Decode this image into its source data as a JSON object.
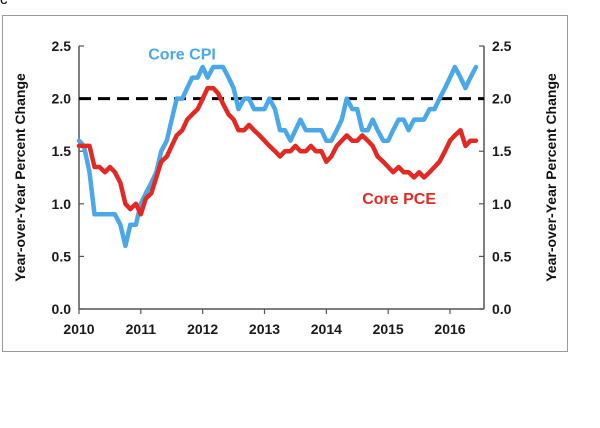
{
  "corner_label": "c",
  "chart_data": {
    "type": "line",
    "xlim": [
      2010,
      2016.55
    ],
    "ylim": [
      0,
      2.5
    ],
    "x_ticks": [
      "2010",
      "2011",
      "2012",
      "2013",
      "2014",
      "2015",
      "2016"
    ],
    "y_ticks": [
      "0.0",
      "0.5",
      "1.0",
      "1.5",
      "2.0",
      "2.5"
    ],
    "ylabel_left": "Year-over-Year Percent Change",
    "ylabel_right": "Year-over-Year Percent Change",
    "reference_line": {
      "y": 2.0,
      "style": "dashed",
      "color": "#000000"
    },
    "series": [
      {
        "name": "Core CPI",
        "color": "#4aa8e8",
        "points": [
          [
            2010.0,
            1.6
          ],
          [
            2010.08,
            1.55
          ],
          [
            2010.17,
            1.3
          ],
          [
            2010.25,
            0.9
          ],
          [
            2010.33,
            0.9
          ],
          [
            2010.42,
            0.9
          ],
          [
            2010.5,
            0.9
          ],
          [
            2010.58,
            0.9
          ],
          [
            2010.67,
            0.8
          ],
          [
            2010.75,
            0.6
          ],
          [
            2010.83,
            0.8
          ],
          [
            2010.92,
            0.8
          ],
          [
            2011.0,
            1.0
          ],
          [
            2011.08,
            1.1
          ],
          [
            2011.17,
            1.2
          ],
          [
            2011.25,
            1.3
          ],
          [
            2011.33,
            1.5
          ],
          [
            2011.42,
            1.6
          ],
          [
            2011.5,
            1.8
          ],
          [
            2011.58,
            2.0
          ],
          [
            2011.67,
            2.0
          ],
          [
            2011.75,
            2.1
          ],
          [
            2011.83,
            2.2
          ],
          [
            2011.92,
            2.2
          ],
          [
            2012.0,
            2.3
          ],
          [
            2012.08,
            2.2
          ],
          [
            2012.17,
            2.3
          ],
          [
            2012.25,
            2.3
          ],
          [
            2012.33,
            2.3
          ],
          [
            2012.42,
            2.2
          ],
          [
            2012.5,
            2.1
          ],
          [
            2012.58,
            1.9
          ],
          [
            2012.67,
            2.0
          ],
          [
            2012.75,
            2.0
          ],
          [
            2012.83,
            1.9
          ],
          [
            2012.92,
            1.9
          ],
          [
            2013.0,
            1.9
          ],
          [
            2013.08,
            2.0
          ],
          [
            2013.17,
            1.9
          ],
          [
            2013.25,
            1.7
          ],
          [
            2013.33,
            1.7
          ],
          [
            2013.42,
            1.6
          ],
          [
            2013.5,
            1.7
          ],
          [
            2013.58,
            1.8
          ],
          [
            2013.67,
            1.7
          ],
          [
            2013.75,
            1.7
          ],
          [
            2013.83,
            1.7
          ],
          [
            2013.92,
            1.7
          ],
          [
            2014.0,
            1.6
          ],
          [
            2014.08,
            1.6
          ],
          [
            2014.17,
            1.7
          ],
          [
            2014.25,
            1.8
          ],
          [
            2014.33,
            2.0
          ],
          [
            2014.42,
            1.9
          ],
          [
            2014.5,
            1.9
          ],
          [
            2014.58,
            1.7
          ],
          [
            2014.67,
            1.7
          ],
          [
            2014.75,
            1.8
          ],
          [
            2014.83,
            1.7
          ],
          [
            2014.92,
            1.6
          ],
          [
            2015.0,
            1.6
          ],
          [
            2015.08,
            1.7
          ],
          [
            2015.17,
            1.8
          ],
          [
            2015.25,
            1.8
          ],
          [
            2015.33,
            1.7
          ],
          [
            2015.42,
            1.8
          ],
          [
            2015.5,
            1.8
          ],
          [
            2015.58,
            1.8
          ],
          [
            2015.67,
            1.9
          ],
          [
            2015.75,
            1.9
          ],
          [
            2015.83,
            2.0
          ],
          [
            2015.92,
            2.1
          ],
          [
            2016.0,
            2.2
          ],
          [
            2016.08,
            2.3
          ],
          [
            2016.17,
            2.2
          ],
          [
            2016.25,
            2.1
          ],
          [
            2016.33,
            2.2
          ],
          [
            2016.42,
            2.3
          ]
        ],
        "label": {
          "text": "Core CPI",
          "x": 2011.12,
          "y": 2.37
        }
      },
      {
        "name": "Core PCE",
        "color": "#e22a24",
        "points": [
          [
            2010.0,
            1.55
          ],
          [
            2010.08,
            1.55
          ],
          [
            2010.17,
            1.55
          ],
          [
            2010.25,
            1.35
          ],
          [
            2010.33,
            1.35
          ],
          [
            2010.42,
            1.3
          ],
          [
            2010.5,
            1.35
          ],
          [
            2010.58,
            1.3
          ],
          [
            2010.67,
            1.2
          ],
          [
            2010.75,
            1.0
          ],
          [
            2010.83,
            0.95
          ],
          [
            2010.92,
            1.0
          ],
          [
            2011.0,
            0.9
          ],
          [
            2011.08,
            1.05
          ],
          [
            2011.17,
            1.1
          ],
          [
            2011.25,
            1.25
          ],
          [
            2011.33,
            1.4
          ],
          [
            2011.42,
            1.45
          ],
          [
            2011.5,
            1.55
          ],
          [
            2011.58,
            1.65
          ],
          [
            2011.67,
            1.7
          ],
          [
            2011.75,
            1.8
          ],
          [
            2011.83,
            1.85
          ],
          [
            2011.92,
            1.9
          ],
          [
            2012.0,
            2.0
          ],
          [
            2012.08,
            2.1
          ],
          [
            2012.17,
            2.1
          ],
          [
            2012.25,
            2.05
          ],
          [
            2012.33,
            1.95
          ],
          [
            2012.42,
            1.85
          ],
          [
            2012.5,
            1.8
          ],
          [
            2012.58,
            1.7
          ],
          [
            2012.67,
            1.7
          ],
          [
            2012.75,
            1.75
          ],
          [
            2012.83,
            1.7
          ],
          [
            2012.92,
            1.65
          ],
          [
            2013.0,
            1.6
          ],
          [
            2013.08,
            1.55
          ],
          [
            2013.17,
            1.5
          ],
          [
            2013.25,
            1.45
          ],
          [
            2013.33,
            1.5
          ],
          [
            2013.42,
            1.5
          ],
          [
            2013.5,
            1.55
          ],
          [
            2013.58,
            1.5
          ],
          [
            2013.67,
            1.5
          ],
          [
            2013.75,
            1.55
          ],
          [
            2013.83,
            1.5
          ],
          [
            2013.92,
            1.5
          ],
          [
            2014.0,
            1.4
          ],
          [
            2014.08,
            1.45
          ],
          [
            2014.17,
            1.55
          ],
          [
            2014.25,
            1.6
          ],
          [
            2014.33,
            1.65
          ],
          [
            2014.42,
            1.6
          ],
          [
            2014.5,
            1.6
          ],
          [
            2014.58,
            1.65
          ],
          [
            2014.67,
            1.6
          ],
          [
            2014.75,
            1.55
          ],
          [
            2014.83,
            1.45
          ],
          [
            2014.92,
            1.4
          ],
          [
            2015.0,
            1.35
          ],
          [
            2015.08,
            1.3
          ],
          [
            2015.17,
            1.35
          ],
          [
            2015.25,
            1.3
          ],
          [
            2015.33,
            1.3
          ],
          [
            2015.42,
            1.25
          ],
          [
            2015.5,
            1.3
          ],
          [
            2015.58,
            1.25
          ],
          [
            2015.67,
            1.3
          ],
          [
            2015.75,
            1.35
          ],
          [
            2015.83,
            1.4
          ],
          [
            2015.92,
            1.5
          ],
          [
            2016.0,
            1.6
          ],
          [
            2016.08,
            1.65
          ],
          [
            2016.17,
            1.7
          ],
          [
            2016.25,
            1.55
          ],
          [
            2016.33,
            1.6
          ],
          [
            2016.42,
            1.6
          ]
        ],
        "label": {
          "text": "Core PCE",
          "x": 2014.58,
          "y": 1.0
        }
      }
    ]
  }
}
